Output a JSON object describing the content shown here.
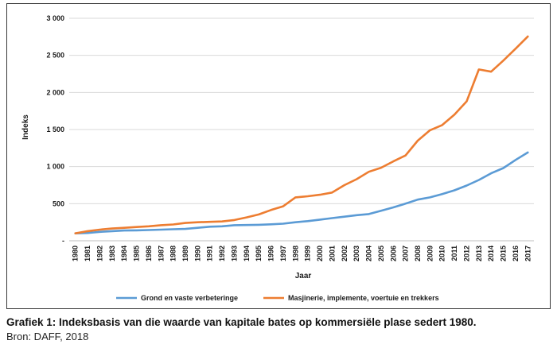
{
  "chart_data": {
    "type": "line",
    "xlabel": "Jaar",
    "ylabel": "Indeks",
    "ylim": [
      0,
      3000
    ],
    "y_ticks": [
      0,
      500,
      1000,
      1500,
      2000,
      2500,
      3000
    ],
    "y_tick_labels": [
      "-",
      "500",
      "1 000",
      "1 500",
      "2 000",
      "2 500",
      "3 000"
    ],
    "grid": "horizontal",
    "legend_position": "bottom",
    "categories": [
      "1980",
      "1981",
      "1982",
      "1983",
      "1984",
      "1985",
      "1986",
      "1987",
      "1988",
      "1989",
      "1990",
      "1991",
      "1992",
      "1993",
      "1994",
      "1995",
      "1996",
      "1997",
      "1998",
      "1999",
      "2000",
      "2001",
      "2002",
      "2003",
      "2004",
      "2005",
      "2006",
      "2007",
      "2008",
      "2009",
      "2010",
      "2011",
      "2012",
      "2013",
      "2014",
      "2015",
      "2016",
      "2017"
    ],
    "series": [
      {
        "name": "Grond en vaste verbeteringe",
        "color": "#5b9bd5",
        "values": [
          100,
          105,
          120,
          130,
          138,
          140,
          145,
          150,
          155,
          160,
          175,
          190,
          195,
          210,
          212,
          215,
          222,
          230,
          250,
          265,
          285,
          305,
          325,
          345,
          360,
          405,
          450,
          500,
          555,
          585,
          630,
          680,
          745,
          820,
          910,
          980,
          1090,
          1190
        ]
      },
      {
        "name": "Masjinerie, implemente, voertuie en trekkers",
        "color": "#ed7d31",
        "values": [
          100,
          130,
          150,
          165,
          175,
          185,
          195,
          210,
          220,
          240,
          250,
          255,
          260,
          280,
          315,
          355,
          415,
          465,
          585,
          600,
          620,
          650,
          750,
          830,
          930,
          985,
          1070,
          1150,
          1350,
          1490,
          1560,
          1700,
          1880,
          2310,
          2280,
          2430,
          2590,
          2755
        ]
      }
    ]
  },
  "caption": {
    "title": "Grafiek 1: Indeksbasis van die waarde van kapitale bates op kommersiële plase sedert 1980.",
    "source": "Bron: DAFF, 2018"
  }
}
